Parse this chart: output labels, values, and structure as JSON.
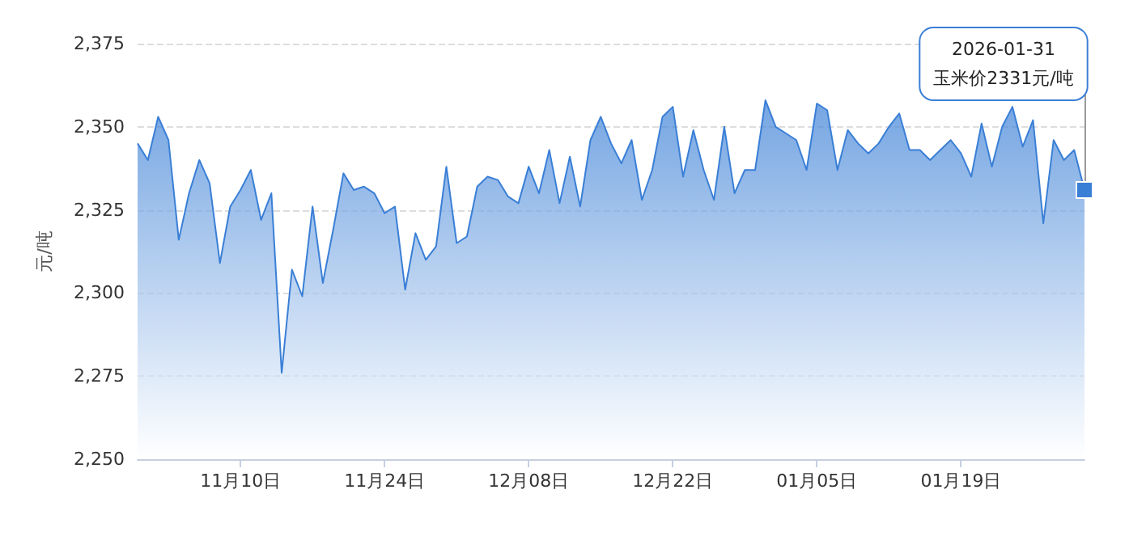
{
  "chart_data": {
    "type": "area",
    "ylabel": "元/吨",
    "color": "#3a7fd6",
    "grid": "y",
    "marker": "none",
    "xlim": [
      "2025-10-31",
      "2026-01-31"
    ],
    "xticks": [
      {
        "value": "2025-11-10",
        "label": "11月10日"
      },
      {
        "value": "2025-11-24",
        "label": "11月24日"
      },
      {
        "value": "2025-12-08",
        "label": "12月08日"
      },
      {
        "value": "2025-12-22",
        "label": "12月22日"
      },
      {
        "value": "2026-01-05",
        "label": "01月05日"
      },
      {
        "value": "2026-01-19",
        "label": "01月19日"
      }
    ],
    "ylim": [
      2250,
      2375
    ],
    "yticks": [
      {
        "value": 2250,
        "label": "2,250"
      },
      {
        "value": 2275,
        "label": "2,275"
      },
      {
        "value": 2300,
        "label": "2,300"
      },
      {
        "value": 2325,
        "label": "2,325"
      },
      {
        "value": 2350,
        "label": "2,350"
      },
      {
        "value": 2375,
        "label": "2,375"
      }
    ],
    "x": [
      "2025-10-31",
      "2025-11-01",
      "2025-11-02",
      "2025-11-03",
      "2025-11-04",
      "2025-11-05",
      "2025-11-06",
      "2025-11-07",
      "2025-11-08",
      "2025-11-09",
      "2025-11-10",
      "2025-11-11",
      "2025-11-12",
      "2025-11-13",
      "2025-11-14",
      "2025-11-15",
      "2025-11-16",
      "2025-11-17",
      "2025-11-18",
      "2025-11-19",
      "2025-11-20",
      "2025-11-21",
      "2025-11-22",
      "2025-11-23",
      "2025-11-24",
      "2025-11-25",
      "2025-11-26",
      "2025-11-27",
      "2025-11-28",
      "2025-11-29",
      "2025-11-30",
      "2025-12-01",
      "2025-12-02",
      "2025-12-03",
      "2025-12-04",
      "2025-12-05",
      "2025-12-06",
      "2025-12-07",
      "2025-12-08",
      "2025-12-09",
      "2025-12-10",
      "2025-12-11",
      "2025-12-12",
      "2025-12-13",
      "2025-12-14",
      "2025-12-15",
      "2025-12-16",
      "2025-12-17",
      "2025-12-18",
      "2025-12-19",
      "2025-12-20",
      "2025-12-21",
      "2025-12-22",
      "2025-12-23",
      "2025-12-24",
      "2025-12-25",
      "2025-12-26",
      "2025-12-27",
      "2025-12-28",
      "2025-12-29",
      "2025-12-30",
      "2025-12-31",
      "2026-01-01",
      "2026-01-02",
      "2026-01-03",
      "2026-01-04",
      "2026-01-05",
      "2026-01-06",
      "2026-01-07",
      "2026-01-08",
      "2026-01-09",
      "2026-01-10",
      "2026-01-11",
      "2026-01-12",
      "2026-01-13",
      "2026-01-14",
      "2026-01-15",
      "2026-01-16",
      "2026-01-17",
      "2026-01-18",
      "2026-01-19",
      "2026-01-20",
      "2026-01-21",
      "2026-01-22",
      "2026-01-23",
      "2026-01-24",
      "2026-01-25",
      "2026-01-26",
      "2026-01-27",
      "2026-01-28",
      "2026-01-29",
      "2026-01-30",
      "2026-01-31"
    ],
    "values": [
      2345,
      2340,
      2353,
      2346,
      2316,
      2330,
      2340,
      2333,
      2309,
      2326,
      2331,
      2337,
      2322,
      2330,
      2276,
      2307,
      2299,
      2326,
      2303,
      2319,
      2336,
      2331,
      2332,
      2330,
      2324,
      2326,
      2301,
      2318,
      2310,
      2314,
      2338,
      2315,
      2317,
      2332,
      2335,
      2334,
      2329,
      2327,
      2338,
      2330,
      2343,
      2327,
      2341,
      2326,
      2346,
      2353,
      2345,
      2339,
      2346,
      2328,
      2337,
      2353,
      2356,
      2335,
      2349,
      2337,
      2328,
      2350,
      2330,
      2337,
      2337,
      2358,
      2350,
      2348,
      2346,
      2337,
      2357,
      2355,
      2337,
      2349,
      2345,
      2342,
      2345,
      2350,
      2354,
      2343,
      2343,
      2340,
      2343,
      2346,
      2342,
      2335,
      2351,
      2338,
      2350,
      2356,
      2344,
      2352,
      2321,
      2346,
      2340,
      2343,
      2331
    ],
    "annotations": [
      {
        "text": "2026-01-31\n玉米价2331元/吨",
        "x": "2026-01-31",
        "y": 2331
      }
    ]
  }
}
